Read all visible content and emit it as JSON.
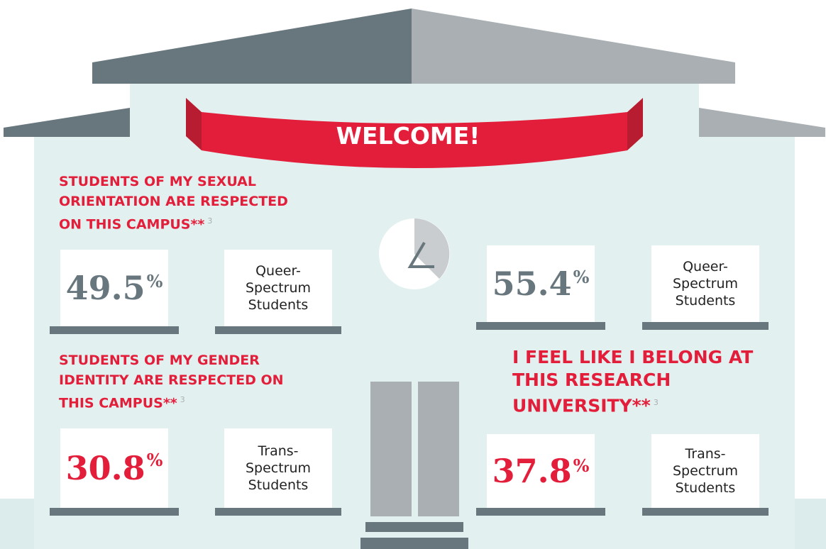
{
  "banner": "WELCOME!",
  "headings": [
    {
      "lines": [
        "STUDENTS OF MY SEXUAL",
        "ORIENTATION ARE RESPECTED",
        "ON THIS CAMPUS"
      ],
      "marker": "**",
      "note": "3"
    },
    {
      "lines": [
        "STUDENTS OF MY GENDER",
        "IDENTITY ARE RESPECTED ON",
        "THIS CAMPUS"
      ],
      "marker": "**",
      "note": "3"
    },
    {
      "lines": [
        "I FEEL LIKE I BELONG AT",
        "THIS RESEARCH",
        "UNIVERSITY"
      ],
      "marker": "**",
      "note": "3"
    }
  ],
  "stats": [
    {
      "value": "49.5",
      "unit": "%",
      "label": [
        "Queer-",
        "Spectrum",
        "Students"
      ]
    },
    {
      "value": "55.4",
      "unit": "%",
      "label": [
        "Queer-",
        "Spectrum",
        "Students"
      ]
    },
    {
      "value": "30.8",
      "unit": "%",
      "label": [
        "Trans-",
        "Spectrum",
        "Students"
      ]
    },
    {
      "value": "37.8",
      "unit": "%",
      "label": [
        "Trans-",
        "Spectrum",
        "Students"
      ]
    }
  ]
}
